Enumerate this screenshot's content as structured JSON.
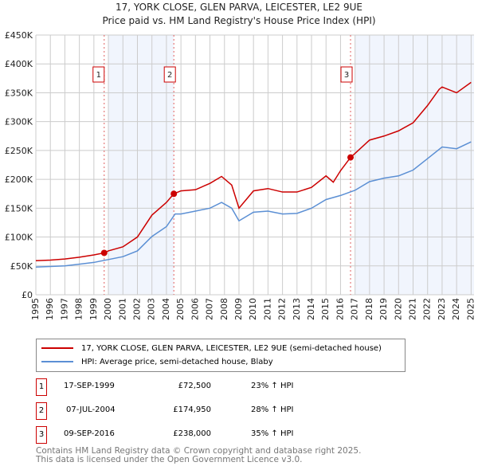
{
  "chart_data": {
    "type": "line",
    "title": "17, YORK CLOSE, GLEN PARVA, LEICESTER, LE2 9UE",
    "subtitle": "Price paid vs. HM Land Registry's House Price Index (HPI)",
    "xlim": [
      1995,
      2025.2
    ],
    "ylim": [
      0,
      450000
    ],
    "y_ticks": [
      {
        "v": 0,
        "label": "£0"
      },
      {
        "v": 50000,
        "label": "£50K"
      },
      {
        "v": 100000,
        "label": "£100K"
      },
      {
        "v": 150000,
        "label": "£150K"
      },
      {
        "v": 200000,
        "label": "£200K"
      },
      {
        "v": 250000,
        "label": "£250K"
      },
      {
        "v": 300000,
        "label": "£300K"
      },
      {
        "v": 350000,
        "label": "£350K"
      },
      {
        "v": 400000,
        "label": "£400K"
      },
      {
        "v": 450000,
        "label": "£450K"
      }
    ],
    "x_ticks": [
      "1995",
      "1996",
      "1997",
      "1998",
      "1999",
      "2000",
      "2001",
      "2002",
      "2003",
      "2004",
      "2005",
      "2006",
      "2007",
      "2008",
      "2009",
      "2010",
      "2011",
      "2012",
      "2013",
      "2014",
      "2015",
      "2016",
      "2017",
      "2018",
      "2019",
      "2020",
      "2021",
      "2022",
      "2023",
      "2024",
      "2025"
    ],
    "grid": true,
    "shaded_ranges": [
      [
        2000,
        2004.5
      ],
      [
        2017,
        2025.2
      ]
    ],
    "series": [
      {
        "name": "17, YORK CLOSE, GLEN PARVA, LEICESTER, LE2 9UE (semi-detached house)",
        "color": "#cc0000",
        "x": [
          1995,
          1996,
          1997,
          1998,
          1999,
          1999.71,
          2000,
          2001,
          2002,
          2003,
          2004,
          2004.51,
          2005,
          2006,
          2007,
          2007.8,
          2008.5,
          2009,
          2009.5,
          2010,
          2011,
          2012,
          2013,
          2014,
          2015,
          2015.5,
          2016,
          2016.69,
          2017,
          2018,
          2019,
          2020,
          2021,
          2022,
          2022.8,
          2023,
          2024,
          2025
        ],
        "y": [
          59000,
          60000,
          62000,
          65000,
          69000,
          72500,
          76000,
          83000,
          100000,
          138000,
          160000,
          174950,
          180000,
          182000,
          193000,
          205000,
          190000,
          150000,
          165000,
          180000,
          184000,
          178000,
          178000,
          186000,
          206000,
          195000,
          215000,
          238000,
          245000,
          268000,
          275000,
          284000,
          298000,
          328000,
          356000,
          360000,
          350000,
          368000
        ]
      },
      {
        "name": "HPI: Average price, semi-detached house, Blaby",
        "color": "#5b8fd4",
        "x": [
          1995,
          1996,
          1997,
          1998,
          1999,
          2000,
          2001,
          2002,
          2003,
          2004,
          2004.6,
          2005,
          2006,
          2007,
          2007.8,
          2008.5,
          2009,
          2010,
          2011,
          2012,
          2013,
          2014,
          2015,
          2016,
          2017,
          2018,
          2019,
          2020,
          2021,
          2022,
          2023,
          2024,
          2025
        ],
        "y": [
          48000,
          49000,
          50000,
          53000,
          56000,
          61000,
          66000,
          76000,
          101000,
          118000,
          140000,
          140000,
          145000,
          150000,
          160000,
          150000,
          128000,
          143000,
          145000,
          140000,
          141000,
          150000,
          165000,
          172000,
          181000,
          196000,
          202000,
          206000,
          216000,
          236000,
          256000,
          253000,
          265000
        ]
      }
    ],
    "sales": [
      {
        "label": "1",
        "x": 1999.71,
        "y": 72500,
        "date": "17-SEP-1999",
        "price": "£72,500",
        "hpi": "23% ↑ HPI"
      },
      {
        "label": "2",
        "x": 2004.51,
        "y": 174950,
        "date": "07-JUL-2004",
        "price": "£174,950",
        "hpi": "28% ↑ HPI"
      },
      {
        "label": "3",
        "x": 2016.69,
        "y": 238000,
        "date": "09-SEP-2016",
        "price": "£238,000",
        "hpi": "35% ↑ HPI"
      }
    ]
  },
  "footer": {
    "line1": "Contains HM Land Registry data © Crown copyright and database right 2025.",
    "line2": "This data is licensed under the Open Government Licence v3.0."
  }
}
